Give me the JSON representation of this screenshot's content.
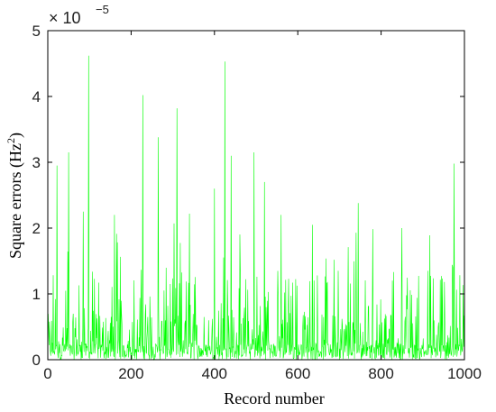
{
  "chart_data": {
    "type": "line",
    "xlabel": "Record number",
    "ylabel_main": "Square errors (Hz",
    "ylabel_sup": "2",
    "ylabel_close": ")",
    "y_exponent_base": "× 10",
    "y_exponent_power": "−5",
    "xlim": [
      0,
      1000
    ],
    "ylim": [
      0,
      5
    ],
    "xticks": [
      0,
      200,
      400,
      600,
      800,
      1000
    ],
    "yticks": [
      0,
      1,
      2,
      3,
      4,
      5
    ],
    "grid": false,
    "series_color": "#00ff00",
    "notable_spikes": [
      {
        "x": 22,
        "y": 2.95
      },
      {
        "x": 50,
        "y": 3.15
      },
      {
        "x": 85,
        "y": 2.25
      },
      {
        "x": 98,
        "y": 4.62
      },
      {
        "x": 160,
        "y": 2.2
      },
      {
        "x": 228,
        "y": 4.02
      },
      {
        "x": 265,
        "y": 3.38
      },
      {
        "x": 310,
        "y": 3.82
      },
      {
        "x": 340,
        "y": 2.22
      },
      {
        "x": 400,
        "y": 2.6
      },
      {
        "x": 425,
        "y": 4.53
      },
      {
        "x": 440,
        "y": 3.1
      },
      {
        "x": 495,
        "y": 3.15
      },
      {
        "x": 520,
        "y": 2.7
      },
      {
        "x": 560,
        "y": 2.2
      },
      {
        "x": 635,
        "y": 2.05
      },
      {
        "x": 745,
        "y": 2.38
      },
      {
        "x": 850,
        "y": 2.0
      },
      {
        "x": 975,
        "y": 2.98
      }
    ]
  }
}
